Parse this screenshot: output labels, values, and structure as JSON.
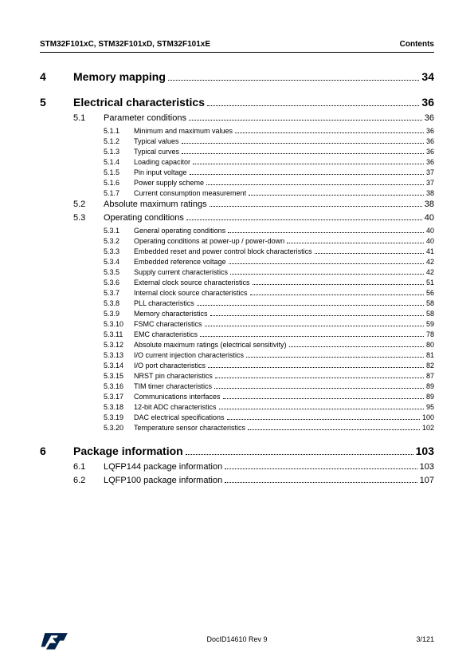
{
  "header": {
    "left": "STM32F101xC, STM32F101xD, STM32F101xE",
    "right": "Contents"
  },
  "chapters": [
    {
      "num": "4",
      "title": "Memory mapping",
      "page": "34",
      "sections": []
    },
    {
      "num": "5",
      "title": "Electrical characteristics",
      "page": "36",
      "sections": [
        {
          "num": "5.1",
          "title": "Parameter conditions",
          "page": "36",
          "subs": [
            {
              "num": "5.1.1",
              "title": "Minimum and maximum values",
              "page": "36"
            },
            {
              "num": "5.1.2",
              "title": "Typical values",
              "page": "36"
            },
            {
              "num": "5.1.3",
              "title": "Typical curves",
              "page": "36"
            },
            {
              "num": "5.1.4",
              "title": "Loading capacitor",
              "page": "36"
            },
            {
              "num": "5.1.5",
              "title": "Pin input voltage",
              "page": "37"
            },
            {
              "num": "5.1.6",
              "title": "Power supply scheme",
              "page": "37"
            },
            {
              "num": "5.1.7",
              "title": "Current consumption measurement",
              "page": "38"
            }
          ]
        },
        {
          "num": "5.2",
          "title": "Absolute maximum ratings",
          "page": "38",
          "subs": []
        },
        {
          "num": "5.3",
          "title": "Operating conditions",
          "page": "40",
          "subs": [
            {
              "num": "5.3.1",
              "title": "General operating conditions",
              "page": "40"
            },
            {
              "num": "5.3.2",
              "title": "Operating conditions at power-up / power-down",
              "page": "40"
            },
            {
              "num": "5.3.3",
              "title": "Embedded reset and power control block characteristics",
              "page": "41"
            },
            {
              "num": "5.3.4",
              "title": "Embedded reference voltage",
              "page": "42"
            },
            {
              "num": "5.3.5",
              "title": "Supply current characteristics",
              "page": "42"
            },
            {
              "num": "5.3.6",
              "title": "External clock source characteristics",
              "page": "51"
            },
            {
              "num": "5.3.7",
              "title": "Internal clock source characteristics",
              "page": "56"
            },
            {
              "num": "5.3.8",
              "title": "PLL characteristics",
              "page": "58"
            },
            {
              "num": "5.3.9",
              "title": "Memory characteristics",
              "page": "58"
            },
            {
              "num": "5.3.10",
              "title": "FSMC characteristics",
              "page": "59"
            },
            {
              "num": "5.3.11",
              "title": "EMC characteristics",
              "page": "78"
            },
            {
              "num": "5.3.12",
              "title": "Absolute maximum ratings (electrical sensitivity)",
              "page": "80"
            },
            {
              "num": "5.3.13",
              "title": "I/O current injection characteristics",
              "page": "81"
            },
            {
              "num": "5.3.14",
              "title": "I/O port characteristics",
              "page": "82"
            },
            {
              "num": "5.3.15",
              "title": "NRST pin characteristics",
              "page": "87"
            },
            {
              "num": "5.3.16",
              "title": "TIM timer characteristics",
              "page": "89"
            },
            {
              "num": "5.3.17",
              "title": "Communications interfaces",
              "page": "89"
            },
            {
              "num": "5.3.18",
              "title": "12-bit ADC characteristics",
              "page": "95"
            },
            {
              "num": "5.3.19",
              "title": "DAC electrical specifications",
              "page": "100"
            },
            {
              "num": "5.3.20",
              "title": "Temperature sensor characteristics",
              "page": "102"
            }
          ]
        }
      ]
    },
    {
      "num": "6",
      "title": "Package information",
      "page": "103",
      "sections": [
        {
          "num": "6.1",
          "title": "LQFP144 package information",
          "page": "103",
          "subs": []
        },
        {
          "num": "6.2",
          "title": "LQFP100 package information",
          "page": "107",
          "subs": []
        }
      ]
    }
  ],
  "footer": {
    "docid": "DocID14610 Rev 9",
    "pagenum": "3/121"
  },
  "colors": {
    "text": "#000000",
    "logo_blue": "#03234b",
    "background": "#ffffff"
  },
  "fonts": {
    "header_size": 10,
    "chapter_size": 14,
    "section_size": 11,
    "sub_size": 9,
    "footer_size": 9
  }
}
